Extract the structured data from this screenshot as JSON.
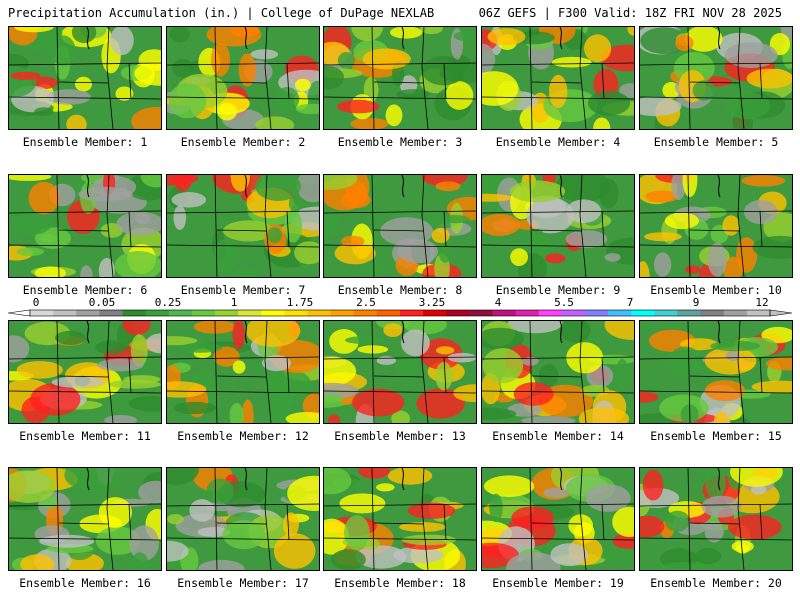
{
  "header": {
    "left": "Precipitation Accumulation (in.) | College of DuPage NEXLAB",
    "right": "06Z GEFS | F300 Valid: 18Z FRI NOV 28 2025"
  },
  "members": [
    {
      "label": "Ensemble Member: 1"
    },
    {
      "label": "Ensemble Member: 2"
    },
    {
      "label": "Ensemble Member: 3"
    },
    {
      "label": "Ensemble Member: 4"
    },
    {
      "label": "Ensemble Member: 5"
    },
    {
      "label": "Ensemble Member: 6"
    },
    {
      "label": "Ensemble Member: 7"
    },
    {
      "label": "Ensemble Member: 8"
    },
    {
      "label": "Ensemble Member: 9"
    },
    {
      "label": "Ensemble Member: 10"
    },
    {
      "label": "Ensemble Member: 11"
    },
    {
      "label": "Ensemble Member: 12"
    },
    {
      "label": "Ensemble Member: 13"
    },
    {
      "label": "Ensemble Member: 14"
    },
    {
      "label": "Ensemble Member: 15"
    },
    {
      "label": "Ensemble Member: 16"
    },
    {
      "label": "Ensemble Member: 17"
    },
    {
      "label": "Ensemble Member: 18"
    },
    {
      "label": "Ensemble Member: 19"
    },
    {
      "label": "Ensemble Member: 20"
    }
  ],
  "colorbar": {
    "tick_labels": [
      "0",
      "0.05",
      "0.25",
      "1",
      "1.75",
      "2.5",
      "3.25",
      "4",
      "5.5",
      "7",
      "9",
      "12"
    ],
    "colors": [
      "#d8d8d8",
      "#c0c0c0",
      "#a0a0a0",
      "#808080",
      "#2e8b2e",
      "#3aa03a",
      "#4fb84f",
      "#68c840",
      "#9ad030",
      "#d8e830",
      "#ffff00",
      "#ffe000",
      "#ffc000",
      "#ffa000",
      "#ff8000",
      "#ff6000",
      "#ff2020",
      "#e00000",
      "#b00020",
      "#901040",
      "#c01080",
      "#e020b0",
      "#ff40ff",
      "#c060ff",
      "#8080ff",
      "#40c0ff",
      "#00ffff",
      "#40d0d0",
      "#60a0a0",
      "#808080",
      "#a0a0a0",
      "#c0c0c0"
    ]
  }
}
